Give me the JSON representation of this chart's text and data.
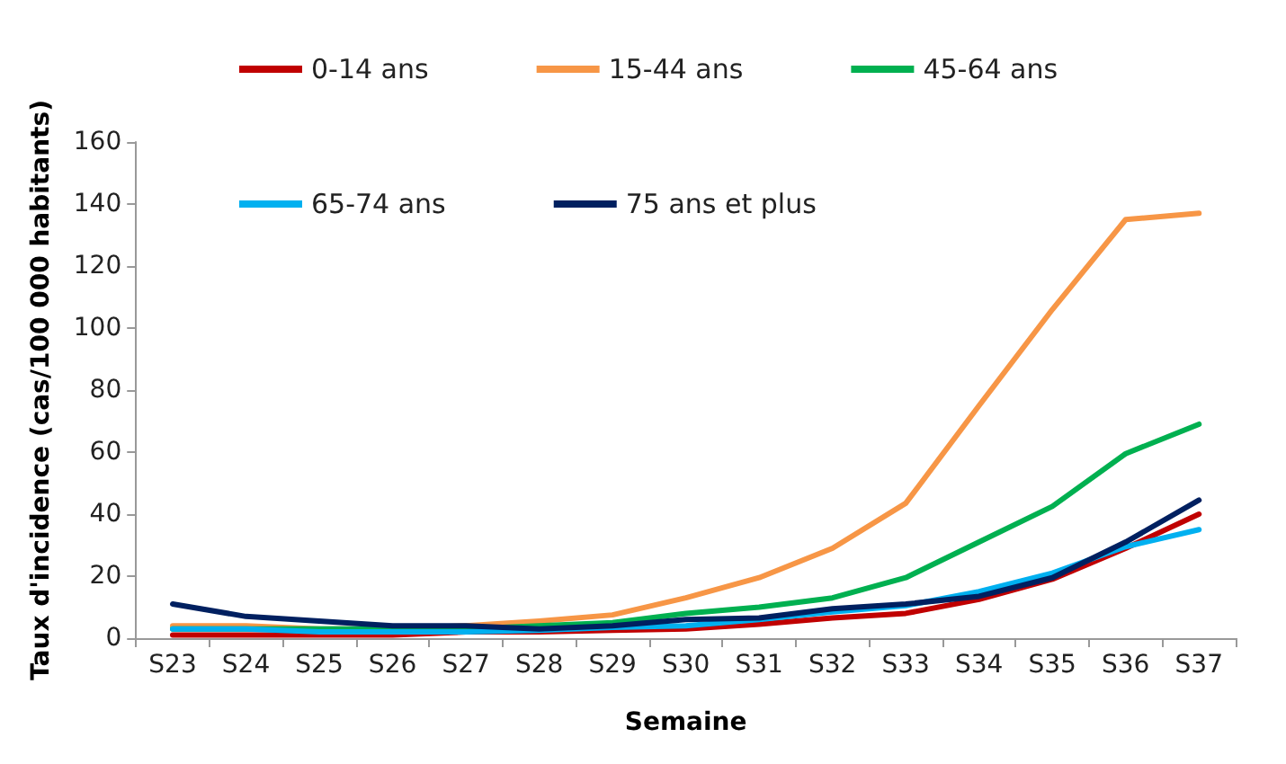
{
  "chart_data": {
    "type": "line",
    "xlabel": "Semaine",
    "ylabel": "Taux d'incidence (cas/100 000 habitants)",
    "categories": [
      "S23",
      "S24",
      "S25",
      "S26",
      "S27",
      "S28",
      "S29",
      "S30",
      "S31",
      "S32",
      "S33",
      "S34",
      "S35",
      "S36",
      "S37"
    ],
    "series": [
      {
        "name": "0-14 ans",
        "color": "#c00000",
        "values": [
          1,
          1,
          1,
          1,
          2,
          2,
          2.5,
          3,
          4.5,
          6.5,
          8,
          12.5,
          19,
          29,
          40
        ]
      },
      {
        "name": "15-44 ans",
        "color": "#f79646",
        "values": [
          4,
          4,
          3,
          3,
          4,
          5.5,
          7.5,
          13,
          19.5,
          29,
          43.5,
          75,
          106,
          135,
          137
        ]
      },
      {
        "name": "45-64 ans",
        "color": "#00b050",
        "values": [
          3,
          3,
          3,
          3,
          3,
          4,
          5,
          8,
          10,
          13,
          19.5,
          31,
          42.5,
          59.5,
          69
        ]
      },
      {
        "name": "65-74 ans",
        "color": "#00b0f0",
        "values": [
          3,
          3,
          2,
          2,
          2,
          2.5,
          3.5,
          4,
          6,
          8.5,
          10.5,
          15,
          21,
          29.5,
          35
        ]
      },
      {
        "name": "75 ans et plus",
        "color": "#002060",
        "values": [
          11,
          7,
          5.5,
          4,
          4,
          3,
          4,
          6,
          6.5,
          9.5,
          11,
          13.5,
          19.5,
          31,
          44.5
        ]
      }
    ],
    "ylim": [
      0,
      160
    ],
    "yticks": [
      0,
      20,
      40,
      60,
      80,
      100,
      120,
      140,
      160
    ],
    "grid": false,
    "legend": "top",
    "marker": "none",
    "line_style": "solid"
  }
}
